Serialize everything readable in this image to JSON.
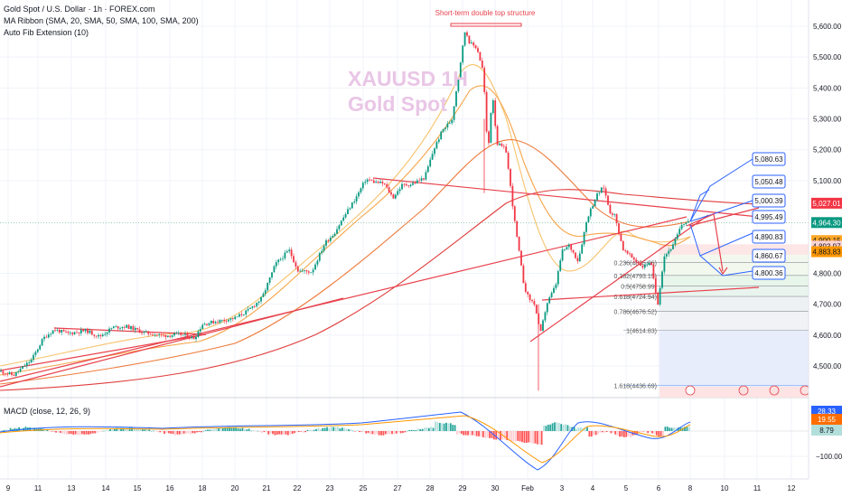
{
  "chart_data": {
    "type": "candlestick",
    "symbol_title": "Gold Spot / U.S. Dollar · 1h · FOREX.com",
    "indicators": [
      "MA Ribbon (SMA, 20, SMA, 50, SMA, 100, SMA, 200)",
      "Auto Fib Extension (10)"
    ],
    "watermark": [
      "XAUUSD 1H",
      "Gold Spot"
    ],
    "annotation": "Short-term double top structure",
    "y_ticks": [
      "5,600.00",
      "5,500.00",
      "5,400.00",
      "5,300.00",
      "5,200.00",
      "5,100.00",
      "4,800.00",
      "4,700.00",
      "4,600.00",
      "4,500.00"
    ],
    "ylim": [
      4420,
      5640
    ],
    "x_ticks": [
      "9",
      "11",
      "13",
      "14",
      "15",
      "16",
      "18",
      "20",
      "21",
      "22",
      "23",
      "25",
      "27",
      "28",
      "29",
      "30",
      "Feb",
      "3",
      "4",
      "5",
      "6",
      "8",
      "10",
      "11",
      "12"
    ],
    "price_path": [
      [
        0,
        4483
      ],
      [
        15,
        4470
      ],
      [
        35,
        4520
      ],
      [
        48,
        4590
      ],
      [
        60,
        4618
      ],
      [
        75,
        4605
      ],
      [
        95,
        4615
      ],
      [
        110,
        4595
      ],
      [
        125,
        4625
      ],
      [
        140,
        4628
      ],
      [
        160,
        4608
      ],
      [
        180,
        4598
      ],
      [
        200,
        4602
      ],
      [
        215,
        4590
      ],
      [
        224,
        4635
      ],
      [
        240,
        4645
      ],
      [
        260,
        4655
      ],
      [
        275,
        4680
      ],
      [
        290,
        4720
      ],
      [
        305,
        4830
      ],
      [
        320,
        4875
      ],
      [
        330,
        4808
      ],
      [
        345,
        4805
      ],
      [
        360,
        4900
      ],
      [
        370,
        4930
      ],
      [
        380,
        4980
      ],
      [
        395,
        5050
      ],
      [
        405,
        5105
      ],
      [
        415,
        5095
      ],
      [
        425,
        5090
      ],
      [
        435,
        5045
      ],
      [
        445,
        5085
      ],
      [
        455,
        5088
      ],
      [
        470,
        5110
      ],
      [
        480,
        5200
      ],
      [
        490,
        5265
      ],
      [
        500,
        5295
      ],
      [
        508,
        5450
      ],
      [
        515,
        5590
      ],
      [
        520,
        5545
      ],
      [
        528,
        5530
      ],
      [
        535,
        5450
      ],
      [
        540,
        5180
      ],
      [
        545,
        5390
      ],
      [
        550,
        5220
      ],
      [
        560,
        5200
      ],
      [
        570,
        4960
      ],
      [
        580,
        4760
      ],
      [
        585,
        4720
      ],
      [
        592,
        4700
      ],
      [
        598,
        4600
      ],
      [
        605,
        4700
      ],
      [
        615,
        4760
      ],
      [
        622,
        4870
      ],
      [
        630,
        4890
      ],
      [
        640,
        4840
      ],
      [
        650,
        4980
      ],
      [
        660,
        5050
      ],
      [
        668,
        5080
      ],
      [
        675,
        5000
      ],
      [
        680,
        4990
      ],
      [
        690,
        4875
      ],
      [
        700,
        4850
      ],
      [
        712,
        4820
      ],
      [
        720,
        4840
      ],
      [
        728,
        4700
      ],
      [
        735,
        4855
      ],
      [
        745,
        4890
      ],
      [
        755,
        4960
      ],
      [
        764,
        4970
      ]
    ],
    "key_levels": [
      "5,080.63",
      "5,050.48",
      "5,000.39",
      "4,995.49",
      "4,890.83",
      "4,860.67",
      "4,800.36"
    ],
    "price_badges": {
      "current": "4,964.30",
      "level_red": "5,027.01",
      "level_orange_1": "4,900.15",
      "level_orange_2": "4,893.97",
      "level_orange_3": "4,883.83"
    },
    "fib_labels": [
      "0.236(4835.06)",
      "0.382(4793.15)",
      "0.5(4758.99)",
      "0.618(4724.94)",
      "0.786(4676.52)",
      "1(4614.83)",
      "1.618(4436.69)"
    ],
    "macd": {
      "label": "MACD (close, 12, 26, 9)",
      "values": [
        "28.33",
        "19.55",
        "8.79"
      ],
      "y_tick": "−100.00"
    }
  }
}
